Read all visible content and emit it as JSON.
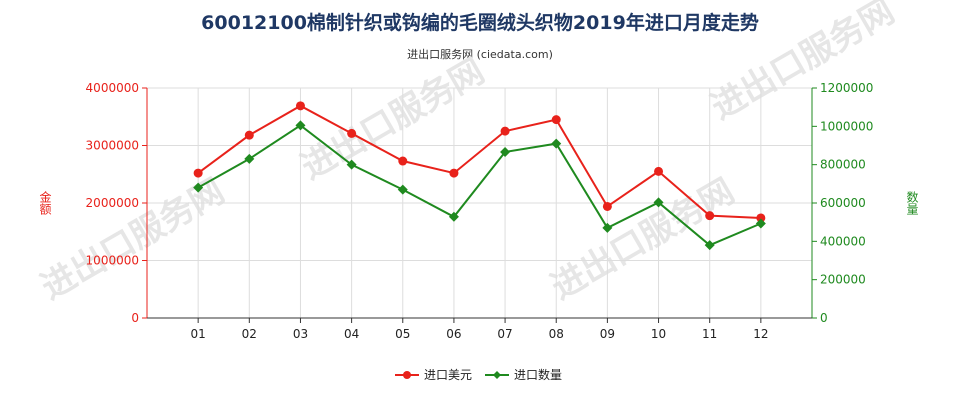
{
  "title": "60012100棉制针织或钩编的毛圈绒头织物2019年进口月度走势",
  "subtitle": "进出口服务网 (ciedata.com)",
  "watermark": "进出口服务网",
  "chart_data": {
    "type": "line",
    "categories": [
      "01",
      "02",
      "03",
      "04",
      "05",
      "06",
      "07",
      "08",
      "09",
      "10",
      "11",
      "12"
    ],
    "series": [
      {
        "name": "进口美元",
        "axis": "left",
        "color": "#e8221b",
        "marker": "circle",
        "values": [
          2520000,
          3180000,
          3690000,
          3210000,
          2730000,
          2520000,
          3250000,
          3450000,
          1940000,
          2550000,
          1780000,
          1740000
        ]
      },
      {
        "name": "进口数量",
        "axis": "right",
        "color": "#1f8a1f",
        "marker": "diamond",
        "values": [
          680000,
          830000,
          1005000,
          800000,
          670000,
          528000,
          866000,
          910000,
          470000,
          603000,
          380000,
          493000
        ]
      }
    ],
    "y_left": {
      "label": "金额",
      "ylim": [
        0,
        4000000
      ],
      "ticks": [
        "0",
        "1000000",
        "2000000",
        "3000000",
        "4000000"
      ]
    },
    "y_right": {
      "label": "数量",
      "ylim": [
        0,
        1200000
      ],
      "ticks": [
        "0",
        "200000",
        "400000",
        "600000",
        "800000",
        "1000000",
        "1200000"
      ]
    },
    "grid": true,
    "legend": "bottom-center"
  }
}
